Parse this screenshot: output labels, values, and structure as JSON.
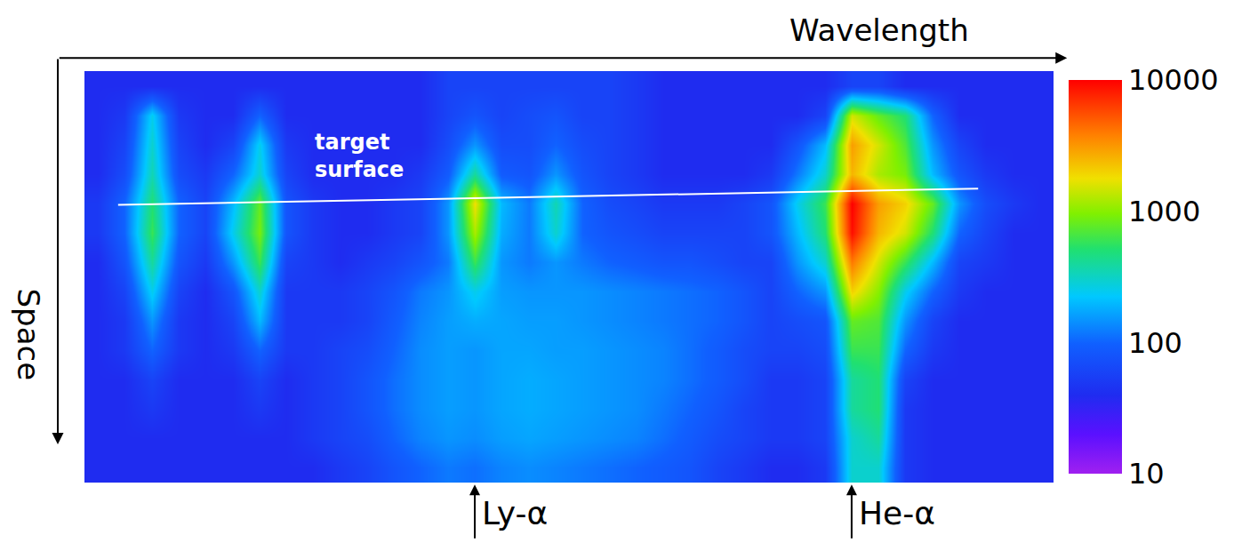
{
  "chart_data": {
    "type": "heatmap",
    "xlabel": "Wavelength",
    "ylabel": "Space",
    "tick_labels": false,
    "log": true,
    "z": [
      [
        40,
        40,
        40,
        40,
        40,
        40,
        40,
        40,
        40,
        40,
        40,
        40,
        40,
        60,
        60,
        60,
        60,
        60,
        60,
        60,
        50,
        40,
        40,
        40,
        40,
        40,
        40,
        40,
        60,
        60,
        40,
        40,
        40,
        40,
        40,
        40
      ],
      [
        40,
        50,
        250,
        50,
        40,
        40,
        100,
        40,
        40,
        40,
        40,
        40,
        40,
        60,
        80,
        60,
        70,
        80,
        60,
        60,
        50,
        40,
        40,
        40,
        40,
        40,
        40,
        60,
        1500,
        800,
        500,
        100,
        40,
        40,
        40,
        40
      ],
      [
        40,
        60,
        300,
        60,
        40,
        60,
        250,
        50,
        40,
        40,
        40,
        40,
        40,
        70,
        150,
        70,
        70,
        100,
        70,
        60,
        50,
        40,
        40,
        40,
        40,
        40,
        80,
        200,
        3000,
        1500,
        700,
        150,
        60,
        40,
        40,
        40
      ],
      [
        40,
        70,
        350,
        70,
        50,
        100,
        300,
        60,
        40,
        40,
        40,
        40,
        50,
        90,
        400,
        90,
        80,
        150,
        80,
        60,
        50,
        40,
        40,
        40,
        40,
        50,
        120,
        300,
        2500,
        1200,
        900,
        200,
        80,
        50,
        40,
        40
      ],
      [
        50,
        100,
        500,
        100,
        60,
        200,
        800,
        80,
        50,
        40,
        40,
        50,
        60,
        150,
        1800,
        200,
        120,
        350,
        100,
        70,
        60,
        50,
        50,
        50,
        60,
        80,
        250,
        600,
        10000,
        3000,
        2000,
        800,
        150,
        70,
        50,
        40
      ],
      [
        50,
        100,
        600,
        100,
        60,
        250,
        900,
        80,
        50,
        40,
        40,
        50,
        60,
        150,
        1200,
        180,
        120,
        300,
        100,
        80,
        70,
        60,
        60,
        60,
        60,
        80,
        200,
        500,
        9000,
        2500,
        1500,
        500,
        100,
        60,
        40,
        40
      ],
      [
        40,
        80,
        400,
        80,
        50,
        150,
        600,
        60,
        50,
        40,
        50,
        60,
        80,
        120,
        600,
        150,
        120,
        150,
        120,
        100,
        90,
        80,
        80,
        70,
        60,
        60,
        150,
        300,
        4000,
        1500,
        600,
        200,
        60,
        50,
        40,
        40
      ],
      [
        40,
        60,
        250,
        60,
        40,
        80,
        300,
        50,
        50,
        50,
        60,
        80,
        120,
        150,
        250,
        160,
        150,
        150,
        150,
        140,
        130,
        120,
        110,
        100,
        80,
        60,
        100,
        150,
        2000,
        1000,
        250,
        100,
        50,
        40,
        40,
        40
      ],
      [
        40,
        50,
        150,
        50,
        40,
        60,
        200,
        50,
        50,
        50,
        60,
        90,
        130,
        160,
        180,
        170,
        160,
        160,
        150,
        140,
        130,
        120,
        110,
        100,
        80,
        60,
        70,
        80,
        800,
        700,
        150,
        60,
        40,
        40,
        40,
        40
      ],
      [
        40,
        50,
        100,
        50,
        40,
        50,
        100,
        50,
        50,
        60,
        70,
        100,
        140,
        160,
        150,
        170,
        170,
        160,
        160,
        150,
        140,
        130,
        110,
        90,
        70,
        60,
        60,
        70,
        600,
        600,
        100,
        50,
        40,
        40,
        40,
        40
      ],
      [
        40,
        40,
        60,
        40,
        40,
        40,
        60,
        40,
        50,
        60,
        80,
        110,
        140,
        160,
        150,
        170,
        180,
        170,
        160,
        150,
        140,
        130,
        110,
        90,
        70,
        50,
        50,
        60,
        400,
        500,
        60,
        40,
        40,
        40,
        40,
        40
      ],
      [
        40,
        40,
        50,
        40,
        40,
        40,
        50,
        40,
        50,
        60,
        80,
        110,
        140,
        160,
        150,
        170,
        180,
        170,
        160,
        150,
        140,
        120,
        100,
        80,
        60,
        50,
        50,
        60,
        400,
        500,
        50,
        40,
        40,
        40,
        40,
        40
      ],
      [
        40,
        40,
        40,
        40,
        40,
        40,
        40,
        40,
        50,
        60,
        70,
        100,
        130,
        150,
        140,
        160,
        170,
        160,
        150,
        140,
        130,
        110,
        90,
        70,
        60,
        50,
        50,
        60,
        300,
        400,
        50,
        40,
        40,
        40,
        40,
        40
      ],
      [
        40,
        40,
        40,
        40,
        40,
        40,
        40,
        40,
        40,
        50,
        60,
        80,
        100,
        120,
        110,
        130,
        140,
        130,
        120,
        110,
        100,
        90,
        80,
        60,
        50,
        40,
        40,
        50,
        300,
        300,
        50,
        40,
        40,
        40,
        40,
        40
      ]
    ],
    "colorbar": {
      "range": [
        10,
        10000
      ],
      "ticks": [
        10,
        100,
        1000,
        10000
      ]
    },
    "target_surface": {
      "text": "target surface",
      "x": [
        0.75,
        32.7
      ],
      "y": [
        4.05,
        3.5
      ],
      "label_x": 9.7,
      "label_y": 2.4
    },
    "line_markers": [
      {
        "label": "Ly-α",
        "x": 14
      },
      {
        "label": "He-α",
        "x": 28
      }
    ]
  }
}
